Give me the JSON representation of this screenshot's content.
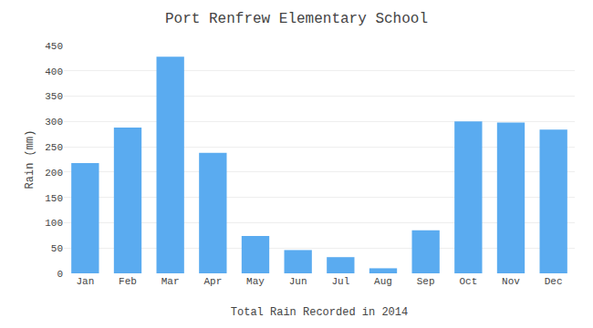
{
  "chart_data": {
    "type": "bar",
    "title": "Port Renfrew Elementary School",
    "xlabel": "Total Rain Recorded in 2014",
    "ylabel": "Rain (mm)",
    "categories": [
      "Jan",
      "Feb",
      "Mar",
      "Apr",
      "May",
      "Jun",
      "Jul",
      "Aug",
      "Sep",
      "Oct",
      "Nov",
      "Dec"
    ],
    "values": [
      218,
      288,
      428,
      238,
      74,
      46,
      32,
      10,
      85,
      300,
      298,
      284
    ],
    "color": "#5aabf0",
    "ylim": [
      0,
      450
    ],
    "yticks": [
      0,
      50,
      100,
      150,
      200,
      250,
      300,
      350,
      400,
      450
    ],
    "grid": true
  }
}
